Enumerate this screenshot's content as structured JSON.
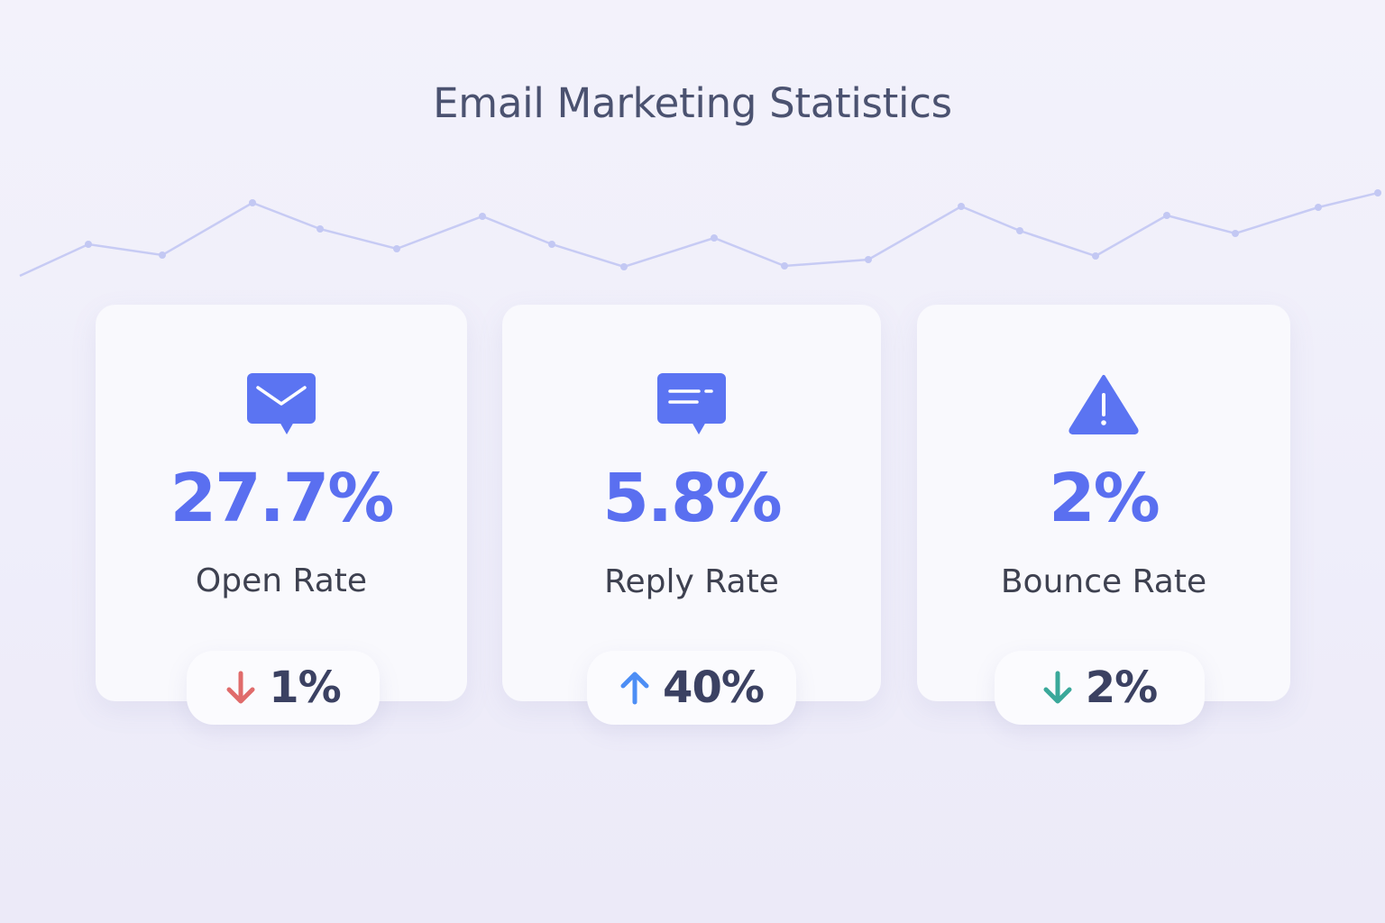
{
  "page": {
    "title": "Email Marketing Statistics"
  },
  "cards": [
    {
      "icon": "email-chat-icon",
      "value": "27.7%",
      "label": "Open Rate",
      "change": {
        "direction": "down",
        "text": "1%",
        "arrow_color": "#e06b6b"
      }
    },
    {
      "icon": "message-icon",
      "value": "5.8%",
      "label": "Reply Rate",
      "change": {
        "direction": "up",
        "text": "40%",
        "arrow_color": "#4d8ef5"
      }
    },
    {
      "icon": "warning-icon",
      "value": "2%",
      "label": "Bounce Rate",
      "change": {
        "direction": "down",
        "text": "2%",
        "arrow_color": "#3aa89a"
      }
    }
  ],
  "colors": {
    "accent": "#5a6ff0",
    "icon": "#5b74f2",
    "decor_line": "#c7cbf4"
  }
}
